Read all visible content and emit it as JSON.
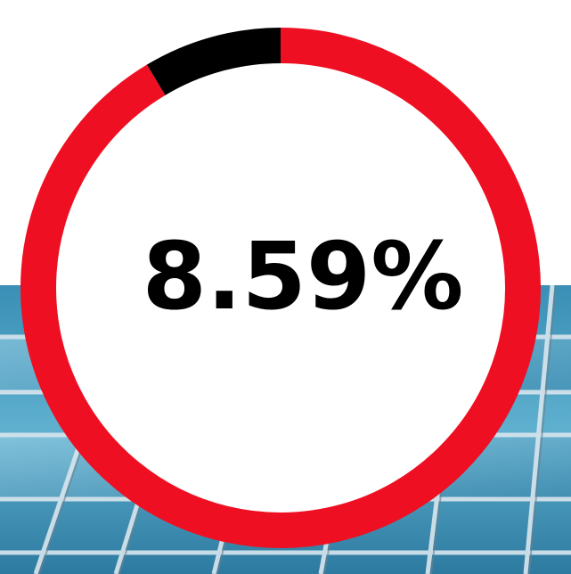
{
  "chart_data": {
    "type": "pie",
    "title": "",
    "display_value": "8.59%",
    "values": [
      8.59,
      91.41
    ],
    "colors": [
      "#000000",
      "#ee1022"
    ]
  },
  "colors": {
    "ring_primary": "#ee1022",
    "ring_highlight": "#000000",
    "center_fill": "#ffffff",
    "text": "#000000"
  },
  "background": {
    "description_icon": "building-glass-facade-photo"
  }
}
